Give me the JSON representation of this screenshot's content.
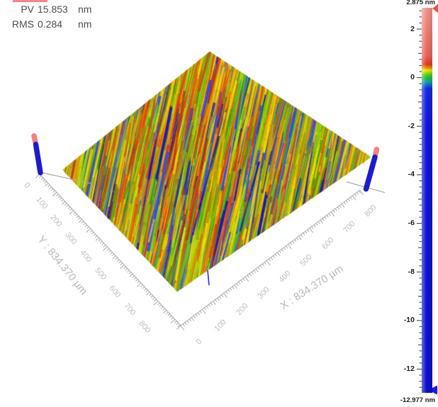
{
  "header": {
    "pv_label": "PV",
    "pv_value": "15.853",
    "pv_unit": "nm",
    "rms_label": "RMS",
    "rms_value": "0.284",
    "rms_unit": "nm",
    "accent_bar_color": "#f4848e"
  },
  "axes": {
    "x": {
      "title": "X : 834.370 µm",
      "tick_labels": [
        "0",
        "100",
        "200",
        "300",
        "400",
        "500",
        "600",
        "700",
        "800"
      ]
    },
    "y": {
      "title": "Y : 834.370 µm",
      "tick_labels": [
        "0",
        "100",
        "200",
        "300",
        "400",
        "500",
        "600",
        "700",
        "800"
      ]
    }
  },
  "colorbar": {
    "max_label": "2.875 nm",
    "min_label": "-12.977 nm",
    "unit": "nm",
    "max_value": 2.875,
    "min_value": -12.977,
    "tick_labels": [
      "2",
      "0",
      "-2",
      "-4",
      "-6",
      "-8",
      "-10",
      "-12"
    ],
    "tick_values": [
      2,
      0,
      -2,
      -4,
      -6,
      -8,
      -10,
      -12
    ],
    "high_marker_color": "#e8524a",
    "low_marker_color": "#1a1aee",
    "gradient": [
      [
        "2.875",
        "#f2938a"
      ],
      [
        "0.9",
        "#e8625a"
      ],
      [
        "0.55",
        "#e03a20"
      ],
      [
        "0.4",
        "#f08c00"
      ],
      [
        "0.3",
        "#f4e800"
      ],
      [
        "0.12",
        "#52d014"
      ],
      [
        "0",
        "#20c030"
      ],
      [
        "-0.18",
        "#10a0a8"
      ],
      [
        "-0.45",
        "#1428e6"
      ],
      [
        "-2",
        "#0e14dd"
      ],
      [
        "-12.977",
        "#0a10cc"
      ]
    ]
  },
  "markers": [
    {
      "name": "left-pin",
      "cap_color": "#f28282",
      "shaft_color": "#1c1ccf"
    },
    {
      "name": "right-pin",
      "cap_color": "#f28282",
      "shaft_color": "#1c1ccf"
    }
  ],
  "chart_data": {
    "type": "heatmap",
    "title": "3D surface topography map (optical profilometer view)",
    "statistics": {
      "PV": "15.853 nm",
      "RMS": "0.284 nm"
    },
    "x_axis": {
      "label": "X",
      "unit": "µm",
      "extent": 834.37,
      "ticks": [
        0,
        100,
        200,
        300,
        400,
        500,
        600,
        700,
        800
      ]
    },
    "y_axis": {
      "label": "Y",
      "unit": "µm",
      "extent": 834.37,
      "ticks": [
        0,
        100,
        200,
        300,
        400,
        500,
        600,
        700,
        800
      ]
    },
    "z_axis": {
      "unit": "nm",
      "min": -12.977,
      "max": 2.875,
      "colorbar_ticks": [
        2,
        0,
        -2,
        -4,
        -6,
        -8,
        -10,
        -12
      ]
    },
    "colormap": "rainbow (red = high, green = 0, blue = low)",
    "surface_description": "square 834.37 x 834.37 µm field shown as isometric diamond; fine parallel machining striations tilted ~12 deg from vertical; dominant yellow-green background with red/orange ridge streaks and sparse deep-blue groove streaks; corner pins at left and right vertices",
    "streak_tilt_deg_from_vertical": 12,
    "surface_palette": [
      [
        "#ffe400",
        13
      ],
      [
        "#d3e400",
        9
      ],
      [
        "#97d400",
        7
      ],
      [
        "#4ec816",
        13
      ],
      [
        "#1fa812",
        6
      ],
      [
        "#f7a600",
        9
      ],
      [
        "#ef6a10",
        6
      ],
      [
        "#e5340f",
        13
      ],
      [
        "#c62a06",
        4
      ],
      [
        "#12b36e",
        2
      ],
      [
        "#2a4def",
        4
      ],
      [
        "#0c18b8",
        3
      ]
    ]
  }
}
